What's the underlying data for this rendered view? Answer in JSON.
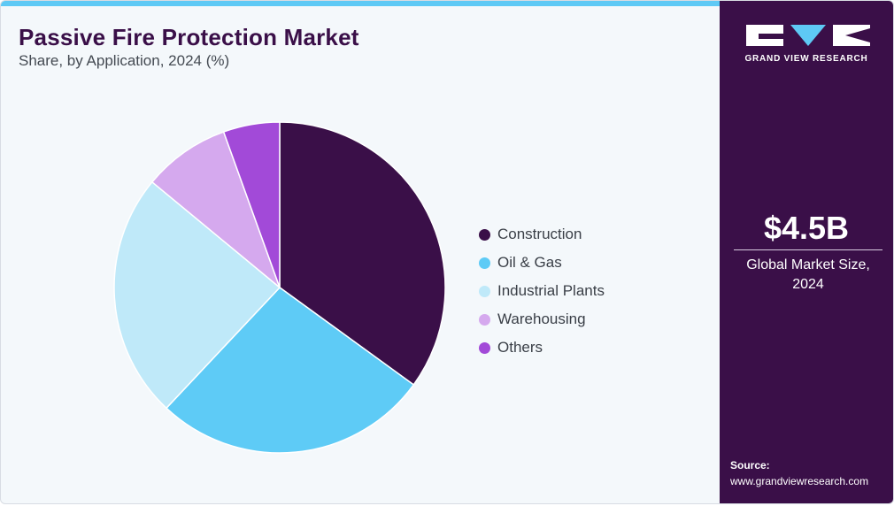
{
  "chart_data": {
    "type": "pie",
    "title": "Passive Fire Protection Market",
    "subtitle": "Share, by Application, 2024 (%)",
    "categories": [
      "Construction",
      "Oil & Gas",
      "Industrial Plants",
      "Warehousing",
      "Others"
    ],
    "values": [
      35,
      27,
      24,
      8.5,
      5.5
    ],
    "colors": [
      "#3a0f48",
      "#5ecbf6",
      "#bfe9f9",
      "#d5a9ee",
      "#a24ad8"
    ],
    "legend": "right"
  },
  "sidebar": {
    "logo_text": "GRAND VIEW RESEARCH",
    "stat_value": "$4.5B",
    "stat_label": "Global Market Size, 2024",
    "source_label": "Source:",
    "source_url": "www.grandviewresearch.com"
  },
  "icons": [
    "gvr-logo-icon"
  ]
}
